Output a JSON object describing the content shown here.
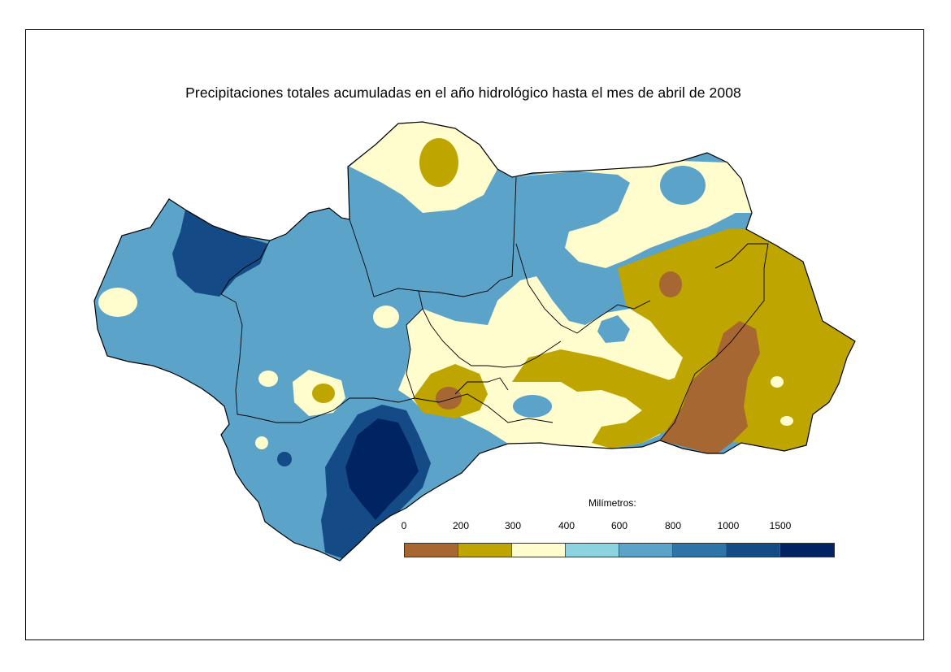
{
  "title": "Precipitaciones totales acumuladas en el año hidrológico hasta el mes de abril de 2008",
  "legend": {
    "title": "Milímetros:",
    "ticks": [
      "0",
      "200",
      "300",
      "400",
      "600",
      "800",
      "1000",
      "1500"
    ],
    "classes": [
      {
        "range": "0-200",
        "color": "#A66733"
      },
      {
        "range": "200-300",
        "color": "#BEA500"
      },
      {
        "range": "300-400",
        "color": "#FFFCCE"
      },
      {
        "range": "400-600",
        "color": "#8DD3DF"
      },
      {
        "range": "600-800",
        "color": "#5BA3C9"
      },
      {
        "range": "800-1000",
        "color": "#2F74A6"
      },
      {
        "range": "1000-1500",
        "color": "#144A85"
      },
      {
        "range": ">1500",
        "color": "#002361"
      }
    ]
  }
}
